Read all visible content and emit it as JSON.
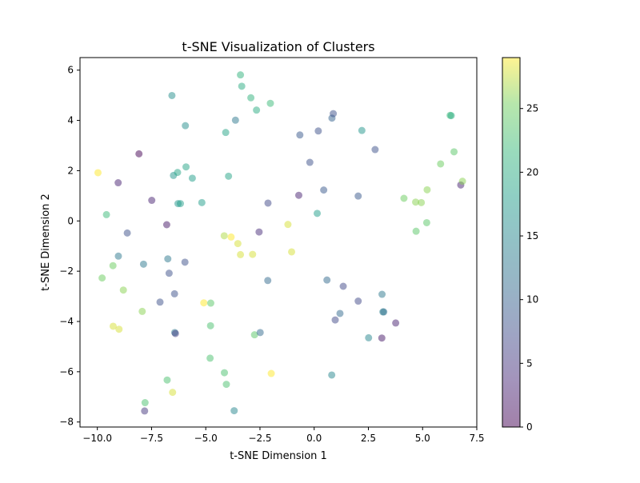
{
  "chart_data": {
    "type": "scatter",
    "title": "t-SNE Visualization of Clusters",
    "xlabel": "t-SNE Dimension 1",
    "ylabel": "t-SNE Dimension 2",
    "xlim": [
      -10.8,
      7.5
    ],
    "ylim": [
      -8.2,
      6.5
    ],
    "xticks": [
      -10.0,
      -7.5,
      -5.0,
      -2.5,
      0.0,
      2.5,
      5.0,
      7.5
    ],
    "xtick_labels": [
      "−10.0",
      "−7.5",
      "−5.0",
      "−2.5",
      "0.0",
      "2.5",
      "5.0",
      "7.5"
    ],
    "yticks": [
      -8,
      -6,
      -4,
      -2,
      0,
      2,
      4,
      6
    ],
    "ytick_labels": [
      "−8",
      "−6",
      "−4",
      "−2",
      "0",
      "2",
      "4",
      "6"
    ],
    "grid": false,
    "marker_opacity": 0.5,
    "colormap": "viridis",
    "colorbar": {
      "range": [
        0,
        29
      ],
      "ticks": [
        0,
        5,
        10,
        15,
        20,
        25
      ],
      "tick_labels": [
        "0",
        "5",
        "10",
        "15",
        "20",
        "25"
      ]
    },
    "points": [
      {
        "x": -9.97,
        "y": 1.92,
        "c": 29
      },
      {
        "x": -9.58,
        "y": 0.25,
        "c": 22
      },
      {
        "x": -9.04,
        "y": 1.52,
        "c": 3
      },
      {
        "x": -8.08,
        "y": 2.67,
        "c": 0
      },
      {
        "x": -8.62,
        "y": -0.48,
        "c": 8
      },
      {
        "x": -9.03,
        "y": -1.4,
        "c": 13
      },
      {
        "x": -9.28,
        "y": -1.78,
        "c": 25
      },
      {
        "x": -9.78,
        "y": -2.27,
        "c": 25
      },
      {
        "x": -8.8,
        "y": -2.75,
        "c": 26
      },
      {
        "x": -7.87,
        "y": -1.72,
        "c": 13
      },
      {
        "x": -7.49,
        "y": 0.82,
        "c": 3
      },
      {
        "x": -6.8,
        "y": -0.15,
        "c": 2
      },
      {
        "x": -6.75,
        "y": -1.51,
        "c": 13
      },
      {
        "x": -6.69,
        "y": -2.08,
        "c": 8
      },
      {
        "x": -7.11,
        "y": -3.23,
        "c": 8
      },
      {
        "x": -6.44,
        "y": -2.9,
        "c": 8
      },
      {
        "x": -7.93,
        "y": -3.6,
        "c": 26
      },
      {
        "x": -9.27,
        "y": -4.19,
        "c": 28
      },
      {
        "x": -9.0,
        "y": -4.31,
        "c": 28
      },
      {
        "x": -6.43,
        "y": -4.44,
        "c": 13
      },
      {
        "x": -6.4,
        "y": -4.48,
        "c": 6
      },
      {
        "x": -6.78,
        "y": -6.33,
        "c": 23
      },
      {
        "x": -6.53,
        "y": -6.82,
        "c": 28
      },
      {
        "x": -7.8,
        "y": -7.23,
        "c": 23
      },
      {
        "x": -7.82,
        "y": -7.56,
        "c": 5
      },
      {
        "x": -6.56,
        "y": 4.99,
        "c": 16
      },
      {
        "x": -5.94,
        "y": 3.79,
        "c": 16
      },
      {
        "x": -5.91,
        "y": 2.15,
        "c": 19
      },
      {
        "x": -6.49,
        "y": 1.81,
        "c": 17
      },
      {
        "x": -6.3,
        "y": 1.93,
        "c": 19
      },
      {
        "x": -5.62,
        "y": 1.7,
        "c": 18
      },
      {
        "x": -6.28,
        "y": 0.69,
        "c": 17
      },
      {
        "x": -6.17,
        "y": 0.69,
        "c": 18
      },
      {
        "x": -5.18,
        "y": 0.73,
        "c": 18
      },
      {
        "x": -5.96,
        "y": -1.64,
        "c": 8
      },
      {
        "x": -5.09,
        "y": -3.26,
        "c": 29
      },
      {
        "x": -4.77,
        "y": -3.27,
        "c": 24
      },
      {
        "x": -4.78,
        "y": -4.17,
        "c": 23
      },
      {
        "x": -4.8,
        "y": -5.46,
        "c": 23
      },
      {
        "x": -4.14,
        "y": -6.04,
        "c": 23
      },
      {
        "x": -4.05,
        "y": -6.5,
        "c": 23
      },
      {
        "x": -3.69,
        "y": -7.55,
        "c": 15
      },
      {
        "x": -3.4,
        "y": 5.81,
        "c": 21
      },
      {
        "x": -3.34,
        "y": 5.36,
        "c": 20
      },
      {
        "x": -2.92,
        "y": 4.9,
        "c": 21
      },
      {
        "x": -2.66,
        "y": 4.41,
        "c": 20
      },
      {
        "x": -2.02,
        "y": 4.68,
        "c": 22
      },
      {
        "x": -3.63,
        "y": 4.01,
        "c": 13
      },
      {
        "x": -4.08,
        "y": 3.52,
        "c": 19
      },
      {
        "x": -3.95,
        "y": 1.78,
        "c": 19
      },
      {
        "x": -2.13,
        "y": 0.71,
        "c": 7
      },
      {
        "x": -2.54,
        "y": -0.44,
        "c": 4
      },
      {
        "x": -4.15,
        "y": -0.59,
        "c": 27
      },
      {
        "x": -3.83,
        "y": -0.64,
        "c": 29
      },
      {
        "x": -3.52,
        "y": -0.9,
        "c": 28
      },
      {
        "x": -3.4,
        "y": -1.34,
        "c": 28
      },
      {
        "x": -2.84,
        "y": -1.33,
        "c": 28
      },
      {
        "x": -2.14,
        "y": -2.37,
        "c": 11
      },
      {
        "x": -2.75,
        "y": -4.53,
        "c": 24
      },
      {
        "x": -2.49,
        "y": -4.44,
        "c": 11
      },
      {
        "x": -1.98,
        "y": -6.07,
        "c": 29
      },
      {
        "x": -1.21,
        "y": -0.14,
        "c": 28
      },
      {
        "x": -1.04,
        "y": -1.23,
        "c": 28
      },
      {
        "x": -0.71,
        "y": 1.02,
        "c": 3
      },
      {
        "x": -0.66,
        "y": 3.42,
        "c": 9
      },
      {
        "x": -0.2,
        "y": 2.33,
        "c": 8
      },
      {
        "x": 0.19,
        "y": 3.58,
        "c": 8
      },
      {
        "x": 0.14,
        "y": 0.3,
        "c": 18
      },
      {
        "x": 0.44,
        "y": 1.23,
        "c": 9
      },
      {
        "x": 0.82,
        "y": 4.09,
        "c": 10
      },
      {
        "x": 0.88,
        "y": 4.27,
        "c": 8
      },
      {
        "x": 0.59,
        "y": -2.35,
        "c": 11
      },
      {
        "x": 1.34,
        "y": -2.6,
        "c": 7
      },
      {
        "x": 0.97,
        "y": -3.94,
        "c": 7
      },
      {
        "x": 1.19,
        "y": -3.68,
        "c": 11
      },
      {
        "x": 0.81,
        "y": -6.13,
        "c": 15
      },
      {
        "x": 2.03,
        "y": 0.99,
        "c": 9
      },
      {
        "x": 2.2,
        "y": 3.6,
        "c": 17
      },
      {
        "x": 2.03,
        "y": -3.19,
        "c": 7
      },
      {
        "x": 2.51,
        "y": -4.65,
        "c": 15
      },
      {
        "x": 2.81,
        "y": 2.84,
        "c": 8
      },
      {
        "x": 3.13,
        "y": -2.92,
        "c": 13
      },
      {
        "x": 3.17,
        "y": -3.62,
        "c": 14
      },
      {
        "x": 3.21,
        "y": -3.62,
        "c": 12
      },
      {
        "x": 3.12,
        "y": -4.66,
        "c": 2
      },
      {
        "x": 3.76,
        "y": -4.06,
        "c": 3
      },
      {
        "x": 4.14,
        "y": 0.9,
        "c": 25
      },
      {
        "x": 4.68,
        "y": 0.75,
        "c": 26
      },
      {
        "x": 4.94,
        "y": 0.73,
        "c": 26
      },
      {
        "x": 4.7,
        "y": -0.41,
        "c": 24
      },
      {
        "x": 5.19,
        "y": -0.07,
        "c": 24
      },
      {
        "x": 5.21,
        "y": 1.24,
        "c": 26
      },
      {
        "x": 5.83,
        "y": 2.27,
        "c": 25
      },
      {
        "x": 6.27,
        "y": 4.2,
        "c": 22
      },
      {
        "x": 6.32,
        "y": 4.19,
        "c": 20
      },
      {
        "x": 6.45,
        "y": 2.75,
        "c": 24
      },
      {
        "x": 6.76,
        "y": 1.43,
        "c": 3
      },
      {
        "x": 6.84,
        "y": 1.58,
        "c": 26
      }
    ]
  }
}
